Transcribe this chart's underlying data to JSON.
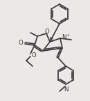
{
  "bg": "#ede8e8",
  "lc": "#3a3a3a",
  "lw": 1.25,
  "figsize": [
    1.3,
    1.45
  ],
  "dpi": 100,
  "xlim": [
    0,
    130
  ],
  "ylim": [
    0,
    145
  ],
  "fs": 6.2
}
